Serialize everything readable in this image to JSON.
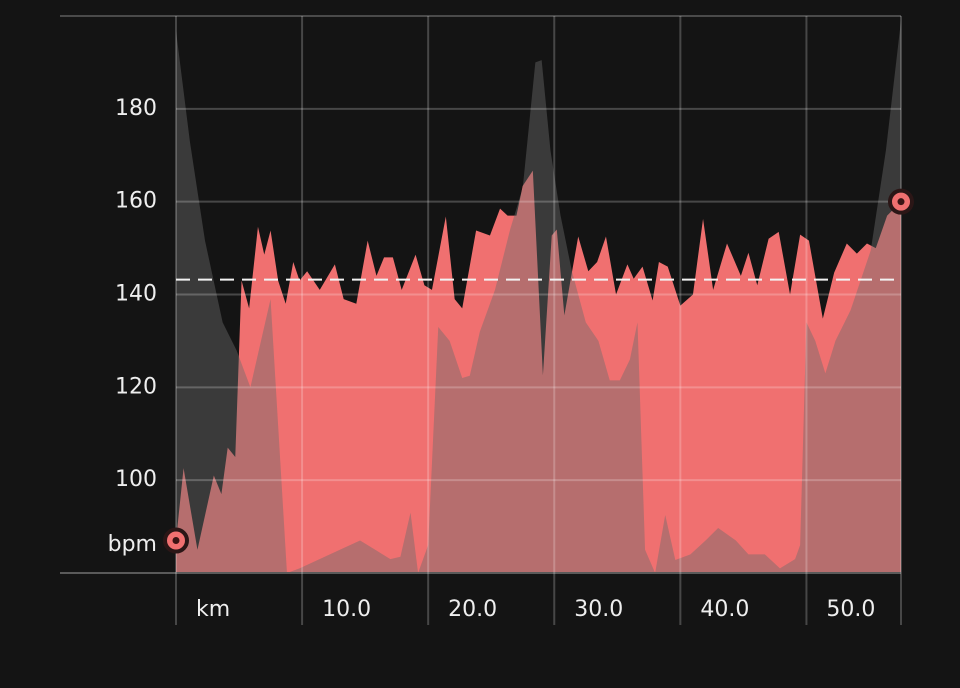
{
  "chart_data": {
    "type": "area",
    "y_unit": "bpm",
    "xlim": [
      0,
      57.5
    ],
    "xticks": [
      {
        "value": 0,
        "label": "km"
      },
      {
        "value": 10,
        "label": "10.0"
      },
      {
        "value": 20,
        "label": "20.0"
      },
      {
        "value": 30,
        "label": "30.0"
      },
      {
        "value": 40,
        "label": "40.0"
      },
      {
        "value": 50,
        "label": "50.0"
      }
    ],
    "ylim": [
      80,
      200
    ],
    "yticks": [
      100,
      120,
      140,
      160,
      180
    ],
    "grid": true,
    "reference_line": 143.2,
    "series": [
      {
        "color": "#f07070",
        "x": [
          0,
          0.6,
          1.7,
          3.0,
          3.6,
          4.1,
          4.7,
          5.2,
          5.8,
          6.5,
          7.0,
          7.5,
          8.1,
          8.7,
          9.3,
          9.8,
          10.4,
          11.4,
          12.6,
          13.3,
          14.3,
          15.2,
          15.9,
          16.5,
          17.2,
          17.9,
          19.0,
          19.7,
          20.3,
          21.4,
          22.1,
          22.7,
          23.8,
          24.9,
          25.7,
          26.3,
          27.0,
          27.5,
          28.3,
          29.1,
          29.8,
          30.2,
          30.8,
          31.9,
          32.7,
          33.4,
          34.1,
          34.9,
          35.8,
          36.3,
          37.0,
          37.8,
          38.3,
          39.0,
          40.0,
          41.0,
          41.8,
          42.6,
          43.7,
          44.8,
          45.4,
          46.1,
          47.0,
          47.8,
          48.7,
          49.5,
          50.2,
          51.3,
          52.2,
          53.2,
          54.0,
          54.8,
          55.5,
          56.4,
          57.5
        ],
        "values": [
          87,
          102.6,
          85,
          101,
          97,
          107,
          105,
          143,
          137,
          154.6,
          148.6,
          153.8,
          143,
          138,
          147,
          143,
          145,
          141,
          146.5,
          139,
          138,
          151.6,
          144,
          148,
          148,
          141,
          148.6,
          142,
          141,
          156.8,
          139,
          137,
          153.8,
          152.7,
          158.5,
          157,
          157,
          163.4,
          166.7,
          122.6,
          152.7,
          154,
          135.5,
          152.5,
          145,
          147,
          152.5,
          140,
          146.5,
          143.4,
          146,
          138.7,
          147,
          146,
          137.6,
          140,
          156.3,
          141,
          151,
          144,
          149,
          142,
          152,
          153.5,
          140,
          152.9,
          151.6,
          134.8,
          144.7,
          151,
          148.8,
          151,
          150,
          157,
          160
        ]
      },
      {
        "color": "#6a6a6a",
        "x": [
          0,
          1.1,
          2.3,
          3.7,
          4.8,
          5.9,
          7.5,
          8.8,
          9.8,
          13.0,
          14.6,
          15.8,
          17.0,
          17.8,
          18.6,
          19.2,
          20.0,
          20.8,
          21.7,
          22.7,
          23.3,
          24.1,
          25.3,
          26.5,
          27.5,
          28.5,
          29.0,
          29.7,
          30.5,
          31.4,
          32.5,
          33.5,
          34.4,
          35.2,
          36.0,
          36.6,
          37.2,
          38.0,
          38.8,
          39.6,
          40.8,
          42.0,
          43.0,
          44.4,
          45.4,
          46.7,
          47.9,
          49.1,
          49.5,
          50.0,
          50.7,
          51.5,
          52.3,
          53.5,
          55.1,
          56.3,
          57.5
        ],
        "values": [
          196.8,
          173,
          151.6,
          134,
          128,
          120,
          139,
          80,
          81,
          85,
          87,
          85,
          83,
          83.5,
          93,
          80,
          86,
          133,
          130,
          122,
          122.5,
          132,
          141,
          154,
          163,
          190,
          190.5,
          171,
          157,
          145,
          134,
          130,
          121.5,
          121.5,
          126,
          134,
          85,
          80,
          92.5,
          82.8,
          84,
          87,
          89.7,
          87,
          84,
          84,
          81,
          83,
          86,
          134,
          130,
          123,
          130,
          136.6,
          149.5,
          171,
          199
        ]
      }
    ]
  }
}
